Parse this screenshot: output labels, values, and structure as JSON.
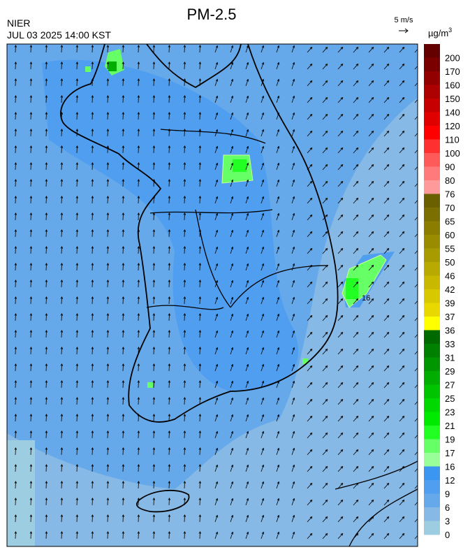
{
  "header": {
    "title": "PM-2.5",
    "agency": "NIER",
    "time": "JUL 03 2025 14:00 KST",
    "wind_scale": "5 m/s",
    "unit": {
      "base": "µg/m",
      "sup": "3"
    }
  },
  "map": {
    "contour_label": "16"
  },
  "legend": {
    "labels": [
      200,
      170,
      160,
      150,
      140,
      120,
      110,
      100,
      90,
      80,
      76,
      70,
      65,
      60,
      55,
      50,
      46,
      42,
      39,
      37,
      36,
      33,
      31,
      29,
      27,
      25,
      23,
      21,
      19,
      17,
      16,
      12,
      9,
      6,
      3,
      0
    ],
    "colors": [
      "#650000",
      "#7a0000",
      "#930000",
      "#ad0000",
      "#c60000",
      "#e00000",
      "#ff0000",
      "#ff3030",
      "#ff5a5a",
      "#ff7a7a",
      "#ff9a9a",
      "#6b6000",
      "#7a6f00",
      "#8a7d00",
      "#998c00",
      "#a89b00",
      "#b8aa00",
      "#c8b800",
      "#d8c800",
      "#e8d800",
      "#ffff00",
      "#006a00",
      "#008000",
      "#009600",
      "#00ad00",
      "#00c400",
      "#00d800",
      "#00ea00",
      "#22ff22",
      "#66ff66",
      "#99ff99",
      "#3a96f0",
      "#4f9ef0",
      "#66a9ea",
      "#86b9e6",
      "#9dcde0"
    ]
  }
}
